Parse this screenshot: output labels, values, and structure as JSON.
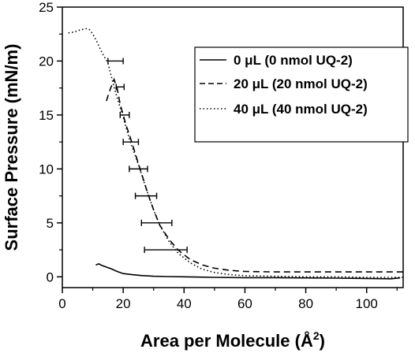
{
  "chart_data": {
    "type": "line",
    "xlabel": "Area per Molecule (Å²)",
    "xlabel_text": "Area per Molecule (Å",
    "xlabel_sup": "2",
    "xlabel_close": ")",
    "ylabel": "Surface Pressure (mN/m)",
    "xlim": [
      0,
      112
    ],
    "ylim": [
      -1,
      25
    ],
    "xticks": [
      0,
      20,
      40,
      60,
      80,
      100
    ],
    "yticks": [
      0,
      5,
      10,
      15,
      20,
      25
    ],
    "legend_position": "top-right",
    "grid": false,
    "series": [
      {
        "name": "0 μL (0 nmol UQ-2)",
        "dash": "solid",
        "x": [
          11,
          12,
          13,
          14,
          15,
          16,
          18,
          20,
          23,
          26,
          30,
          35,
          40,
          50,
          60,
          70,
          80,
          90,
          100,
          108,
          111
        ],
        "y": [
          1.1,
          1.2,
          1.05,
          0.95,
          0.85,
          0.75,
          0.5,
          0.3,
          0.2,
          0.12,
          0.05,
          0.02,
          0.0,
          -0.05,
          -0.08,
          -0.08,
          -0.1,
          -0.12,
          -0.15,
          -0.18,
          -0.1
        ]
      },
      {
        "name": "20 μL (20 nmol UQ-2)",
        "dash": "dashed",
        "x": [
          14.5,
          15.5,
          17,
          18,
          19,
          20,
          21,
          22,
          23,
          24,
          25,
          26,
          28,
          30,
          32,
          35,
          38,
          42,
          46,
          50,
          55,
          60,
          70,
          80,
          90,
          100,
          112
        ],
        "y": [
          16.3,
          17.2,
          18.3,
          17.5,
          16.0,
          15.0,
          14.0,
          13.2,
          12.3,
          11.4,
          10.5,
          9.6,
          7.8,
          6.2,
          4.8,
          3.5,
          2.5,
          1.6,
          1.1,
          0.8,
          0.6,
          0.5,
          0.45,
          0.45,
          0.45,
          0.45,
          0.45
        ]
      },
      {
        "name": "40 μL (40 nmol UQ-2)",
        "dash": "dotted",
        "x": [
          2,
          4,
          6,
          8,
          9,
          10,
          11,
          12,
          13,
          14,
          15,
          16,
          17,
          18,
          19,
          20,
          21,
          22,
          23,
          24,
          25,
          26,
          28,
          30,
          32,
          35,
          38,
          42,
          46,
          50,
          55,
          60,
          70,
          80,
          90,
          100,
          112
        ],
        "y": [
          22.6,
          22.7,
          22.9,
          23.0,
          22.9,
          22.5,
          22.0,
          21.4,
          20.8,
          20.3,
          19.8,
          18.7,
          17.6,
          16.6,
          15.7,
          14.8,
          13.8,
          12.8,
          12.0,
          11.2,
          10.4,
          9.5,
          7.8,
          6.2,
          4.8,
          3.3,
          2.2,
          1.3,
          0.7,
          0.4,
          0.2,
          0.1,
          0.05,
          0.0,
          0.0,
          -0.05,
          -0.05
        ]
      }
    ],
    "error_bars": [
      {
        "x": 17.5,
        "y": 20,
        "xerr": 2.5
      },
      {
        "x": 19,
        "y": 17.6,
        "xerr": 1.3
      },
      {
        "x": 20.5,
        "y": 15,
        "xerr": 1.5
      },
      {
        "x": 22.5,
        "y": 12.5,
        "xerr": 2.5
      },
      {
        "x": 25,
        "y": 10,
        "xerr": 3
      },
      {
        "x": 27.5,
        "y": 7.5,
        "xerr": 3.5
      },
      {
        "x": 31,
        "y": 5,
        "xerr": 5
      },
      {
        "x": 34,
        "y": 2.5,
        "xerr": 7
      }
    ]
  },
  "colors": {
    "line": "#000000",
    "background": "#ffffff"
  }
}
